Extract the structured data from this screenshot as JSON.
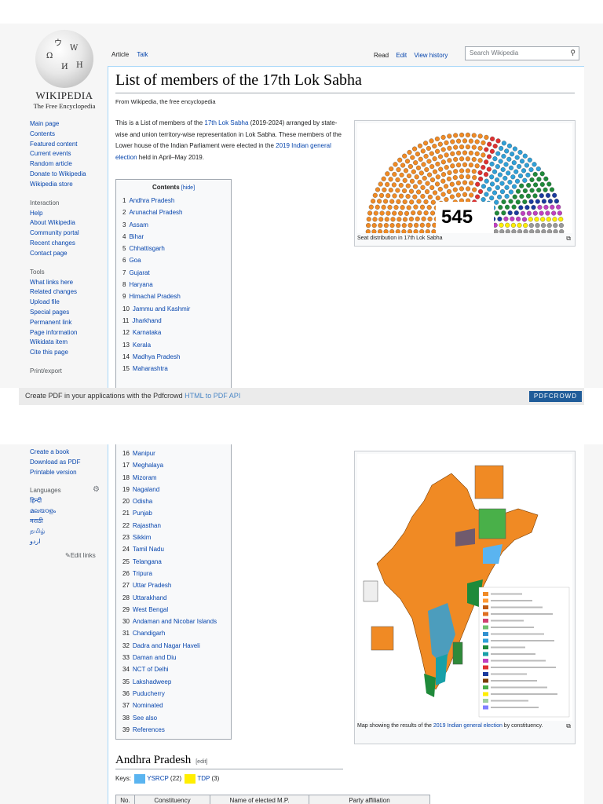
{
  "logo": {
    "wordmark": "Wikipedia",
    "tagline": "The Free Encyclopedia"
  },
  "tabs": {
    "article": "Article",
    "talk": "Talk",
    "read": "Read",
    "edit": "Edit",
    "history": "View history"
  },
  "search": {
    "placeholder": "Search Wikipedia"
  },
  "page": {
    "title": "List of members of the 17th Lok Sabha",
    "tagline": "From Wikipedia, the free encyclopedia",
    "intro": [
      "This is a List of members of the ",
      "17th Lok Sabha",
      " (2019-2024) arranged by state-wise and union territory-wise representation in Lok Sabha. These members of the Lower house of the Indian Parliament were elected in the ",
      "2019 Indian general election",
      " held in April–May 2019."
    ]
  },
  "sidebar": {
    "nav": [
      "Main page",
      "Contents",
      "Featured content",
      "Current events",
      "Random article",
      "Donate to Wikipedia",
      "Wikipedia store"
    ],
    "interaction_heading": "Interaction",
    "interaction": [
      "Help",
      "About Wikipedia",
      "Community portal",
      "Recent changes",
      "Contact page"
    ],
    "tools_heading": "Tools",
    "tools": [
      "What links here",
      "Related changes",
      "Upload file",
      "Special pages",
      "Permanent link",
      "Page information",
      "Wikidata item",
      "Cite this page"
    ],
    "print_heading": "Print/export",
    "print": [
      "Create a book",
      "Download as PDF",
      "Printable version"
    ],
    "languages_heading": "Languages",
    "languages": [
      "हिन्दी",
      "മലയാളം",
      "मराठी",
      "தமிழ்",
      "اردو"
    ],
    "edit_links": "Edit links"
  },
  "toc": {
    "title": "Contents",
    "hide": "[hide]",
    "entries": [
      {
        "n": "1",
        "t": "Andhra Pradesh"
      },
      {
        "n": "2",
        "t": "Arunachal Pradesh"
      },
      {
        "n": "3",
        "t": "Assam"
      },
      {
        "n": "4",
        "t": "Bihar"
      },
      {
        "n": "5",
        "t": "Chhattisgarh"
      },
      {
        "n": "6",
        "t": "Goa"
      },
      {
        "n": "7",
        "t": "Gujarat"
      },
      {
        "n": "8",
        "t": "Haryana"
      },
      {
        "n": "9",
        "t": "Himachal Pradesh"
      },
      {
        "n": "10",
        "t": "Jammu and Kashmir"
      },
      {
        "n": "11",
        "t": "Jharkhand"
      },
      {
        "n": "12",
        "t": "Karnataka"
      },
      {
        "n": "13",
        "t": "Kerala"
      },
      {
        "n": "14",
        "t": "Madhya Pradesh"
      },
      {
        "n": "15",
        "t": "Maharashtra"
      },
      {
        "n": "16",
        "t": "Manipur"
      },
      {
        "n": "17",
        "t": "Meghalaya"
      },
      {
        "n": "18",
        "t": "Mizoram"
      },
      {
        "n": "19",
        "t": "Nagaland"
      },
      {
        "n": "20",
        "t": "Odisha"
      },
      {
        "n": "21",
        "t": "Punjab"
      },
      {
        "n": "22",
        "t": "Rajasthan"
      },
      {
        "n": "23",
        "t": "Sikkim"
      },
      {
        "n": "24",
        "t": "Tamil Nadu"
      },
      {
        "n": "25",
        "t": "Telangana"
      },
      {
        "n": "26",
        "t": "Tripura"
      },
      {
        "n": "27",
        "t": "Uttar Pradesh"
      },
      {
        "n": "28",
        "t": "Uttarakhand"
      },
      {
        "n": "29",
        "t": "West Bengal"
      },
      {
        "n": "30",
        "t": "Andaman and Nicobar Islands"
      },
      {
        "n": "31",
        "t": "Chandigarh"
      },
      {
        "n": "32",
        "t": "Dadra and Nagar Haveli"
      },
      {
        "n": "33",
        "t": "Daman and Diu"
      },
      {
        "n": "34",
        "t": "NCT of Delhi"
      },
      {
        "n": "35",
        "t": "Lakshadweep"
      },
      {
        "n": "36",
        "t": "Puducherry"
      },
      {
        "n": "37",
        "t": "Nominated"
      },
      {
        "n": "38",
        "t": "See also"
      },
      {
        "n": "39",
        "t": "References"
      }
    ]
  },
  "seat_figure": {
    "total": "545",
    "caption": "Seat distribution in 17th Lok Sabha"
  },
  "map_figure": {
    "caption_pre": "Map showing the results of the ",
    "caption_link": "2019 Indian general election",
    "caption_post": " by constituency."
  },
  "banner": {
    "text": "Create PDF in your applications with the Pdfcrowd ",
    "link": "HTML to PDF API",
    "button": "PDFCROWD"
  },
  "section": {
    "title": "Andhra Pradesh",
    "edit": "[edit]"
  },
  "keys": {
    "label": "Keys:",
    "items": [
      {
        "name": "YSRCP",
        "count": "(22)",
        "color": "#5ab4f0"
      },
      {
        "name": "TDP",
        "count": "(3)",
        "color": "#ffee00"
      }
    ]
  },
  "table": {
    "headers": [
      "No.",
      "Constituency",
      "Name of elected M.P.",
      "Party affiliation"
    ]
  },
  "colors": {
    "bjp": "#f08a24",
    "inc": "#2fa0d8",
    "other1": "#1f8a3a",
    "other2": "#1a3a9e",
    "other3": "#c040c0"
  }
}
